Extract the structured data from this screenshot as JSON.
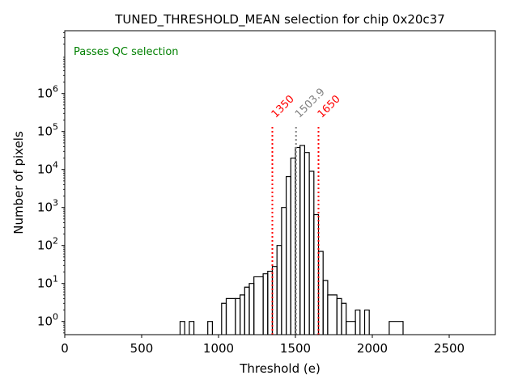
{
  "chart_data": {
    "type": "histogram",
    "title": "TUNED_THRESHOLD_MEAN selection for chip 0x20c37",
    "xlabel": "Threshold (e)",
    "ylabel": "Number of pixels",
    "xlim": [
      0,
      2800
    ],
    "ylim": [
      0.45,
      45000000
    ],
    "yscale": "log",
    "xticks": [
      0,
      500,
      1000,
      1500,
      2000,
      2500
    ],
    "xtick_labels": [
      "0",
      "500",
      "1000",
      "1500",
      "2000",
      "2500"
    ],
    "ytick_exponents": [
      0,
      1,
      2,
      3,
      4,
      5,
      6
    ],
    "yticks_label_base": "10",
    "annotation": {
      "text": "Passes QC selection",
      "color": "#008000",
      "position": "top-left"
    },
    "vlines": [
      {
        "x": 1350,
        "label": "1350",
        "color": "#ff0000"
      },
      {
        "x": 1503.9,
        "label": "1503.9",
        "color": "#808080"
      },
      {
        "x": 1650,
        "label": "1650",
        "color": "#ff0000"
      }
    ],
    "bins": [
      {
        "x0": 750,
        "x1": 780,
        "count": 1
      },
      {
        "x0": 780,
        "x1": 810,
        "count": 0
      },
      {
        "x0": 810,
        "x1": 840,
        "count": 1
      },
      {
        "x0": 840,
        "x1": 930,
        "count": 0
      },
      {
        "x0": 930,
        "x1": 960,
        "count": 1
      },
      {
        "x0": 960,
        "x1": 1020,
        "count": 0
      },
      {
        "x0": 1020,
        "x1": 1050,
        "count": 3
      },
      {
        "x0": 1050,
        "x1": 1110,
        "count": 4
      },
      {
        "x0": 1110,
        "x1": 1140,
        "count": 4
      },
      {
        "x0": 1140,
        "x1": 1170,
        "count": 5
      },
      {
        "x0": 1170,
        "x1": 1200,
        "count": 8
      },
      {
        "x0": 1200,
        "x1": 1230,
        "count": 10
      },
      {
        "x0": 1230,
        "x1": 1290,
        "count": 15
      },
      {
        "x0": 1290,
        "x1": 1320,
        "count": 18
      },
      {
        "x0": 1320,
        "x1": 1350,
        "count": 21
      },
      {
        "x0": 1350,
        "x1": 1380,
        "count": 28
      },
      {
        "x0": 1380,
        "x1": 1410,
        "count": 100
      },
      {
        "x0": 1410,
        "x1": 1440,
        "count": 1000
      },
      {
        "x0": 1440,
        "x1": 1470,
        "count": 6500
      },
      {
        "x0": 1470,
        "x1": 1500,
        "count": 20000
      },
      {
        "x0": 1500,
        "x1": 1530,
        "count": 38000
      },
      {
        "x0": 1530,
        "x1": 1560,
        "count": 43000
      },
      {
        "x0": 1560,
        "x1": 1590,
        "count": 28000
      },
      {
        "x0": 1590,
        "x1": 1620,
        "count": 9000
      },
      {
        "x0": 1620,
        "x1": 1650,
        "count": 650
      },
      {
        "x0": 1650,
        "x1": 1680,
        "count": 70
      },
      {
        "x0": 1680,
        "x1": 1710,
        "count": 12
      },
      {
        "x0": 1710,
        "x1": 1770,
        "count": 5
      },
      {
        "x0": 1770,
        "x1": 1800,
        "count": 4
      },
      {
        "x0": 1800,
        "x1": 1830,
        "count": 3
      },
      {
        "x0": 1830,
        "x1": 1890,
        "count": 1
      },
      {
        "x0": 1890,
        "x1": 1920,
        "count": 2
      },
      {
        "x0": 1920,
        "x1": 1950,
        "count": 0
      },
      {
        "x0": 1950,
        "x1": 1980,
        "count": 2
      },
      {
        "x0": 1980,
        "x1": 2110,
        "count": 0
      },
      {
        "x0": 2110,
        "x1": 2200,
        "count": 1
      }
    ]
  }
}
